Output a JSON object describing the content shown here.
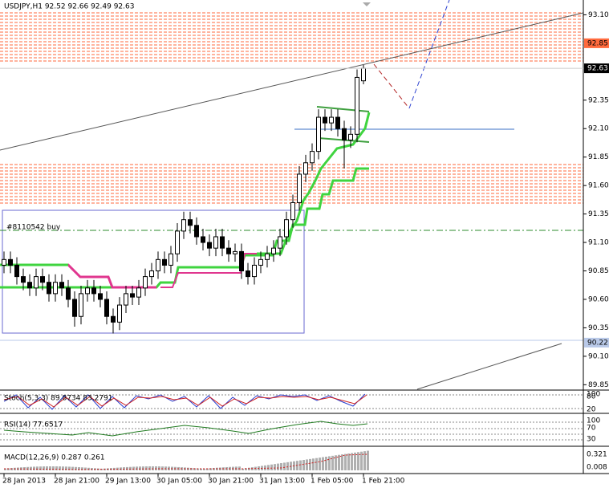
{
  "chart_data": {
    "type": "candlestick",
    "title": "USDJPY,H1  92.52 92.66 92.49 92.63",
    "open": [
      90.9,
      90.95,
      90.9,
      90.8,
      90.75,
      90.7,
      90.8,
      90.75,
      90.65,
      90.75,
      90.7,
      90.6,
      90.45,
      90.65,
      90.7,
      90.65,
      90.6,
      90.45,
      90.4,
      90.55,
      90.65,
      90.62,
      90.7,
      90.8,
      90.85,
      90.95,
      90.9,
      91.0,
      91.2,
      91.3,
      91.25,
      91.15,
      91.1,
      91.05,
      91.15,
      91.05,
      91.0,
      91.02,
      90.85,
      90.8,
      90.9,
      90.95,
      91.0,
      91.05,
      91.15,
      91.3,
      91.45,
      91.7,
      91.8,
      91.9,
      92.2,
      92.15,
      92.2,
      92.1,
      92.0,
      92.05,
      92.52
    ],
    "high": [
      91.02,
      91.02,
      90.97,
      90.87,
      90.82,
      90.87,
      90.87,
      90.82,
      90.82,
      90.82,
      90.77,
      90.67,
      90.72,
      90.77,
      90.77,
      90.72,
      90.67,
      90.52,
      90.62,
      90.72,
      90.72,
      90.77,
      90.87,
      90.92,
      91.02,
      91.02,
      91.07,
      91.27,
      91.37,
      91.37,
      91.32,
      91.22,
      91.17,
      91.22,
      91.22,
      91.12,
      91.09,
      91.09,
      90.92,
      90.97,
      91.02,
      91.07,
      91.12,
      91.22,
      91.37,
      91.52,
      91.77,
      91.87,
      91.97,
      92.27,
      92.27,
      92.27,
      92.27,
      92.17,
      92.12,
      92.62,
      92.66
    ],
    "low": [
      90.83,
      90.83,
      90.73,
      90.68,
      90.63,
      90.63,
      90.68,
      90.58,
      90.58,
      90.63,
      90.53,
      90.36,
      90.38,
      90.58,
      90.58,
      90.53,
      90.38,
      90.3,
      90.33,
      90.48,
      90.55,
      90.55,
      90.63,
      90.73,
      90.78,
      90.83,
      90.83,
      90.93,
      91.13,
      91.18,
      91.08,
      91.03,
      90.98,
      90.98,
      90.98,
      90.93,
      90.93,
      90.78,
      90.73,
      90.73,
      90.83,
      90.88,
      90.93,
      90.98,
      91.08,
      91.23,
      91.38,
      91.63,
      91.73,
      91.83,
      92.08,
      92.08,
      92.03,
      91.75,
      91.93,
      91.98,
      92.49
    ],
    "close": [
      90.95,
      90.9,
      90.8,
      90.75,
      90.7,
      90.8,
      90.75,
      90.65,
      90.75,
      90.7,
      90.6,
      90.45,
      90.65,
      90.7,
      90.65,
      90.6,
      90.45,
      90.4,
      90.55,
      90.65,
      90.62,
      90.7,
      90.8,
      90.85,
      90.95,
      90.9,
      91.0,
      91.2,
      91.3,
      91.25,
      91.15,
      91.1,
      91.05,
      91.15,
      91.05,
      91.0,
      91.02,
      90.85,
      90.8,
      90.9,
      90.95,
      91.0,
      91.05,
      91.15,
      91.3,
      91.45,
      91.7,
      91.8,
      91.9,
      92.2,
      92.15,
      92.2,
      92.1,
      92.0,
      92.05,
      92.55,
      92.63
    ],
    "color": "#000000",
    "ylim": [
      89.81,
      93.23
    ],
    "yticks": [
      {
        "value": 93.1,
        "label": "93.10"
      },
      {
        "value": 92.35,
        "label": "92.35"
      },
      {
        "value": 92.1,
        "label": "92.10"
      },
      {
        "value": 91.85,
        "label": "91.85"
      },
      {
        "value": 91.6,
        "label": "91.60"
      },
      {
        "value": 91.35,
        "label": "91.35"
      },
      {
        "value": 91.1,
        "label": "91.10"
      },
      {
        "value": 90.85,
        "label": "90.85"
      },
      {
        "value": 90.6,
        "label": "90.60"
      },
      {
        "value": 90.35,
        "label": "90.35"
      },
      {
        "value": 90.1,
        "label": "90.10"
      },
      {
        "value": 89.85,
        "label": "89.85"
      }
    ],
    "price_markers": [
      {
        "value": 92.85,
        "label": "92.85",
        "color": "#ff6a3d"
      },
      {
        "value": 92.63,
        "label": "92.63",
        "color": "#000000"
      },
      {
        "value": 90.22,
        "label": "90.22",
        "color": "#b9c9e8"
      }
    ],
    "xticks": [
      {
        "value": 0,
        "label": "28 Jan 2013"
      },
      {
        "value": 8,
        "label": "28 Jan 21:00"
      },
      {
        "value": 16,
        "label": "29 Jan 13:00"
      },
      {
        "value": 24,
        "label": "30 Jan 05:00"
      },
      {
        "value": 32,
        "label": "30 Jan 21:00"
      },
      {
        "value": 40,
        "label": "31 Jan 13:00"
      },
      {
        "value": 48,
        "label": "1 Feb 05:00"
      },
      {
        "value": 56,
        "label": "1 Feb 21:00"
      }
    ],
    "order_label": "#8110542 buy",
    "stoch_label": "Stoch(5,3,3) 89.8734 83.2791",
    "stoch_ticks": [
      "100",
      "80",
      "20"
    ],
    "rsi_label": "RSI(14) 77.6517",
    "rsi_ticks": [
      "100",
      "70",
      "30"
    ],
    "macd_label": "MACD(12,26,9) 0.287 0.261",
    "macd_ticks": [
      "0.321",
      "0.008"
    ]
  }
}
